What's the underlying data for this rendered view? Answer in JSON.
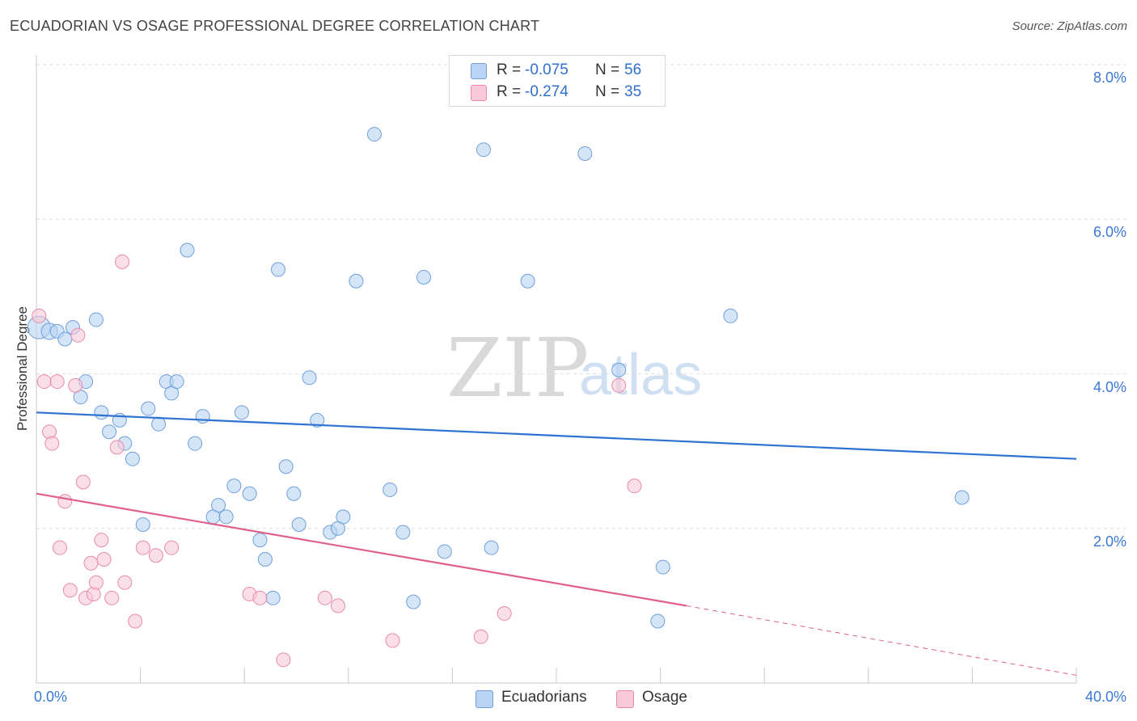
{
  "title": "ECUADORIAN VS OSAGE PROFESSIONAL DEGREE CORRELATION CHART",
  "source": "Source: ZipAtlas.com",
  "watermark": {
    "zip": "ZIP",
    "atlas": "atlas"
  },
  "colors": {
    "blue_fill": "#b8d3f3",
    "blue_stroke": "#6f9fdc",
    "blue_line": "#2f73d2",
    "pink_fill": "#f8c9d8",
    "pink_stroke": "#e98aab",
    "pink_line": "#e0608d",
    "accent_text": "#3a78d4",
    "grid": "#dcdcdc"
  },
  "legend": {
    "rows": [
      {
        "r_label": "R =",
        "r_value": "-0.075",
        "n_label": "N =",
        "n_value": "56"
      },
      {
        "r_label": "R =",
        "r_value": "-0.274",
        "n_label": "N =",
        "n_value": "35"
      }
    ]
  },
  "bottom_legend": {
    "series1": "Ecuadorians",
    "series2": "Osage"
  },
  "chart_data": {
    "type": "scatter",
    "title": "ECUADORIAN VS OSAGE PROFESSIONAL DEGREE CORRELATION CHART",
    "xlabel": "",
    "ylabel": "Professional Degree",
    "xlim": [
      0,
      40
    ],
    "ylim": [
      0,
      8.0
    ],
    "x_tick_labels": [
      "0.0%",
      "40.0%"
    ],
    "y_ticks": [
      2.0,
      4.0,
      6.0,
      8.0
    ],
    "y_tick_labels": [
      "2.0%",
      "4.0%",
      "6.0%",
      "8.0%"
    ],
    "grid": true,
    "series": [
      {
        "name": "Ecuadorians",
        "r": -0.075,
        "n": 56,
        "trend": {
          "x0": 0,
          "y0": 3.5,
          "x1": 40,
          "y1": 2.9
        },
        "points": [
          [
            0.1,
            4.6
          ],
          [
            0.5,
            4.55
          ],
          [
            0.8,
            4.55
          ],
          [
            1.1,
            4.45
          ],
          [
            1.4,
            4.6
          ],
          [
            1.7,
            3.7
          ],
          [
            1.9,
            3.9
          ],
          [
            2.3,
            4.7
          ],
          [
            2.5,
            3.5
          ],
          [
            2.8,
            3.25
          ],
          [
            3.2,
            3.4
          ],
          [
            3.4,
            3.1
          ],
          [
            3.7,
            2.9
          ],
          [
            4.1,
            2.05
          ],
          [
            4.3,
            3.55
          ],
          [
            4.7,
            3.35
          ],
          [
            5.0,
            3.9
          ],
          [
            5.2,
            3.75
          ],
          [
            5.4,
            3.9
          ],
          [
            5.8,
            5.6
          ],
          [
            6.1,
            3.1
          ],
          [
            6.4,
            3.45
          ],
          [
            6.8,
            2.15
          ],
          [
            7.0,
            2.3
          ],
          [
            7.3,
            2.15
          ],
          [
            7.6,
            2.55
          ],
          [
            7.9,
            3.5
          ],
          [
            8.2,
            2.45
          ],
          [
            8.6,
            1.85
          ],
          [
            8.8,
            1.6
          ],
          [
            9.1,
            1.1
          ],
          [
            9.3,
            5.35
          ],
          [
            9.6,
            2.8
          ],
          [
            9.9,
            2.45
          ],
          [
            10.1,
            2.05
          ],
          [
            10.5,
            3.95
          ],
          [
            10.8,
            3.4
          ],
          [
            11.3,
            1.95
          ],
          [
            11.6,
            2.0
          ],
          [
            11.8,
            2.15
          ],
          [
            12.3,
            5.2
          ],
          [
            13.0,
            7.1
          ],
          [
            13.6,
            2.5
          ],
          [
            14.1,
            1.95
          ],
          [
            14.5,
            1.05
          ],
          [
            14.9,
            5.25
          ],
          [
            15.7,
            1.7
          ],
          [
            17.2,
            6.9
          ],
          [
            17.5,
            1.75
          ],
          [
            18.9,
            5.2
          ],
          [
            21.1,
            6.85
          ],
          [
            22.4,
            4.05
          ],
          [
            23.9,
            0.8
          ],
          [
            24.1,
            1.5
          ],
          [
            26.7,
            4.75
          ],
          [
            35.6,
            2.4
          ]
        ]
      },
      {
        "name": "Osage",
        "r": -0.274,
        "n": 35,
        "trend": {
          "x0": 0,
          "y0": 2.45,
          "x1": 25,
          "y1": 1.0,
          "dashed_to_x": 40,
          "dashed_to_y": 0.1
        },
        "points": [
          [
            0.1,
            4.75
          ],
          [
            0.3,
            3.9
          ],
          [
            0.5,
            3.25
          ],
          [
            0.6,
            3.1
          ],
          [
            0.8,
            3.9
          ],
          [
            0.9,
            1.75
          ],
          [
            1.1,
            2.35
          ],
          [
            1.3,
            1.2
          ],
          [
            1.5,
            3.85
          ],
          [
            1.6,
            4.5
          ],
          [
            1.8,
            2.6
          ],
          [
            1.9,
            1.1
          ],
          [
            2.1,
            1.55
          ],
          [
            2.2,
            1.15
          ],
          [
            2.3,
            1.3
          ],
          [
            2.5,
            1.85
          ],
          [
            2.6,
            1.6
          ],
          [
            2.9,
            1.1
          ],
          [
            3.1,
            3.05
          ],
          [
            3.3,
            5.45
          ],
          [
            3.4,
            1.3
          ],
          [
            3.8,
            0.8
          ],
          [
            4.1,
            1.75
          ],
          [
            4.6,
            1.65
          ],
          [
            5.2,
            1.75
          ],
          [
            8.2,
            1.15
          ],
          [
            8.6,
            1.1
          ],
          [
            9.5,
            0.3
          ],
          [
            11.1,
            1.1
          ],
          [
            11.6,
            1.0
          ],
          [
            13.7,
            0.55
          ],
          [
            17.1,
            0.6
          ],
          [
            18.0,
            0.9
          ],
          [
            22.4,
            3.85
          ],
          [
            23.0,
            2.55
          ]
        ]
      }
    ]
  }
}
